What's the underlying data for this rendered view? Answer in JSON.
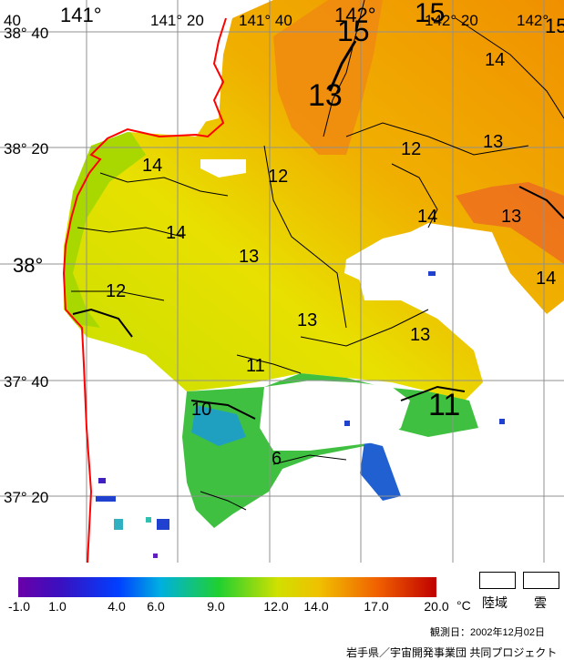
{
  "map": {
    "longitude_labels": [
      "141°",
      "141° 20",
      "141° 40",
      "142°",
      "142° 20",
      "142°"
    ],
    "latitude_labels": [
      "38° 40",
      "38° 20",
      "38°",
      "37° 40",
      "37° 20"
    ],
    "corner_labels": [
      "40",
      "15"
    ],
    "isotherm_labels": [
      "15",
      "15",
      "14",
      "13",
      "13",
      "12",
      "14",
      "12",
      "14",
      "13",
      "14",
      "13",
      "14",
      "12",
      "13",
      "13",
      "11",
      "10",
      "11",
      "6"
    ]
  },
  "colorbar": {
    "ticks": [
      "-1.0",
      "1.0",
      "4.0",
      "6.0",
      "9.0",
      "12.0",
      "14.0",
      "17.0",
      "20.0"
    ],
    "unit": "°C",
    "land_label": "陸域",
    "cloud_label": "雲"
  },
  "footer": {
    "observation_date": "観測日：2002年12月02日",
    "credit": "岩手県／宇宙開発事業団 共同プロジェクト"
  },
  "colors": {
    "coastline": "#ff0000",
    "contour": "#000000",
    "grid": "#909090"
  }
}
